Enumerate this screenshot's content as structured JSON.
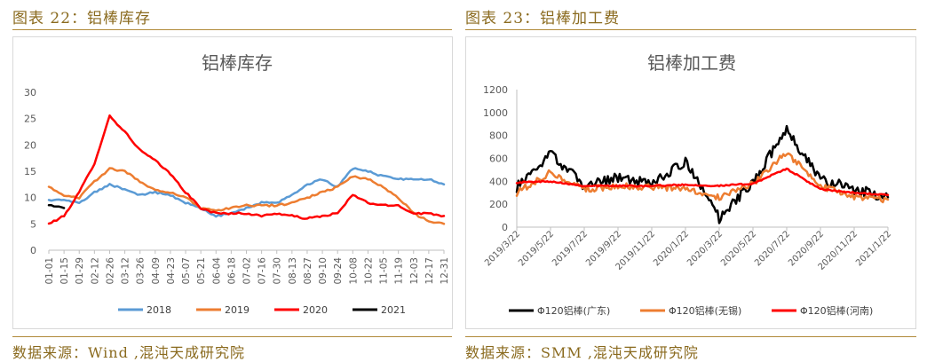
{
  "left": {
    "caption": "图表 22：铝棒库存",
    "source": "数据来源：Wind ,混沌天成研究院"
  },
  "right": {
    "caption": "图表 23：铝棒加工费",
    "source": "数据来源：SMM ,混沌天成研究院"
  },
  "chart_data": [
    {
      "type": "line",
      "title": "铝棒库存",
      "xlabel": "",
      "ylabel": "",
      "categories": [
        "01-01",
        "01-15",
        "01-29",
        "02-12",
        "02-26",
        "03-12",
        "03-26",
        "04-09",
        "04-23",
        "05-07",
        "05-21",
        "06-04",
        "06-18",
        "07-02",
        "07-16",
        "07-30",
        "08-13",
        "08-27",
        "09-10",
        "09-24",
        "10-08",
        "10-22",
        "11-05",
        "11-19",
        "12-03",
        "12-17",
        "12-31"
      ],
      "yticks": [
        "0",
        "5",
        "10",
        "15",
        "20",
        "25",
        "30"
      ],
      "ylim": [
        0,
        30
      ],
      "legend_position": "bottom",
      "grid": false,
      "series": [
        {
          "name": "2018",
          "color": "#5b9bd5",
          "values": [
            9.5,
            9.5,
            9,
            11,
            12.5,
            11.5,
            10.5,
            11,
            10.5,
            9,
            8,
            6.5,
            7,
            8,
            9,
            9,
            10.5,
            12.5,
            13.5,
            12,
            15.5,
            15,
            14,
            13.5,
            13.5,
            13.5,
            12.5
          ]
        },
        {
          "name": "2019",
          "color": "#ed7d31",
          "values": [
            12,
            10.5,
            10,
            13,
            15.5,
            15,
            13,
            11.5,
            11,
            10,
            8,
            7.5,
            8,
            8.5,
            8.5,
            8.5,
            9,
            10,
            11,
            12,
            14,
            13.5,
            12,
            10,
            7,
            5.5,
            5
          ]
        },
        {
          "name": "2020",
          "color": "#ff0000",
          "values": [
            5,
            6.5,
            11,
            16.5,
            25.5,
            22.5,
            19,
            17,
            14.5,
            11,
            8,
            7,
            7,
            7,
            6.5,
            7,
            6.5,
            6,
            6.5,
            7,
            10.5,
            9,
            8.5,
            8.5,
            7,
            7,
            6.5
          ]
        },
        {
          "name": "2021",
          "color": "#000000",
          "values": [
            8.5,
            8,
            null,
            null,
            null,
            null,
            null,
            null,
            null,
            null,
            null,
            null,
            null,
            null,
            null,
            null,
            null,
            null,
            null,
            null,
            null,
            null,
            null,
            null,
            null,
            null,
            null
          ]
        }
      ]
    },
    {
      "type": "line",
      "title": "铝棒加工费",
      "xlabel": "",
      "ylabel": "",
      "categories": [
        "2019/3/22",
        "2019/5/22",
        "2019/7/22",
        "2019/9/22",
        "2019/11/22",
        "2020/1/22",
        "2020/3/22",
        "2020/5/22",
        "2020/7/22",
        "2020/9/22",
        "2020/11/22",
        "2021/1/22"
      ],
      "yticks": [
        "0",
        "200",
        "400",
        "600",
        "800",
        "1000",
        "1200"
      ],
      "ylim": [
        0,
        1200
      ],
      "legend_position": "bottom",
      "grid": false,
      "series": [
        {
          "name": "Φ120铝棒(广东)",
          "color": "#000000",
          "values": [
            350,
            640,
            360,
            430,
            380,
            570,
            80,
            400,
            850,
            420,
            330,
            260
          ]
        },
        {
          "name": "Φ120铝棒(无锡)",
          "color": "#ed7d31",
          "values": [
            300,
            480,
            330,
            360,
            350,
            340,
            260,
            380,
            650,
            360,
            260,
            240
          ]
        },
        {
          "name": "Φ120铝棒(河南)",
          "color": "#ff0000",
          "values": [
            390,
            400,
            360,
            360,
            360,
            370,
            360,
            380,
            510,
            330,
            300,
            280
          ]
        }
      ]
    }
  ]
}
